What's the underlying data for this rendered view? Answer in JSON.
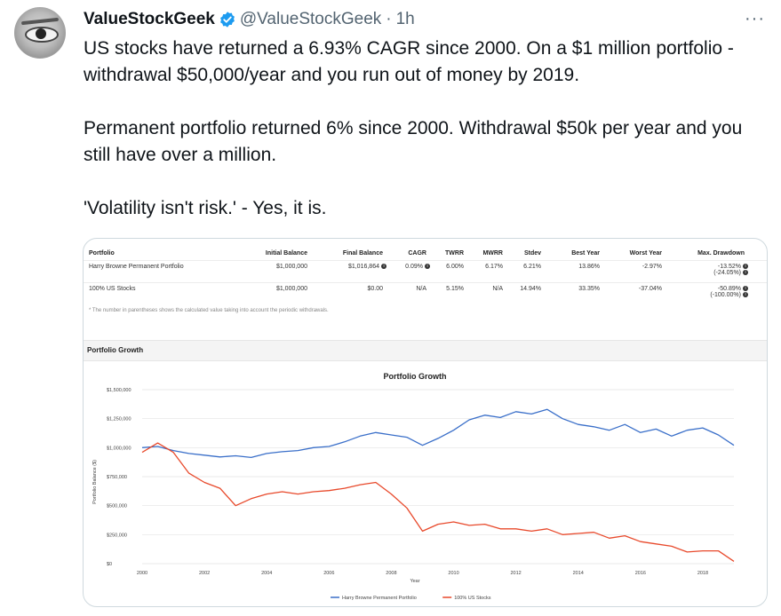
{
  "tweet": {
    "display_name": "ValueStockGeek",
    "handle": "@ValueStockGeek",
    "separator": "·",
    "time": "1h",
    "more": "···",
    "paragraphs": [
      "US stocks have returned a 6.93% CAGR since 2000. On a $1 million portfolio - withdrawal $50,000/year and you run out of money by 2019.",
      "Permanent portfolio returned 6% since 2000. Withdrawal $50k per year and you still have over a million.",
      "'Volatility isn't risk.' - Yes, it is."
    ],
    "verified_color": "#1d9bf0"
  },
  "table": {
    "headers": [
      "Portfolio",
      "Initial Balance",
      "Final Balance",
      "CAGR",
      "TWRR",
      "MWRR",
      "Stdev",
      "Best Year",
      "Worst Year",
      "Max. Drawdown"
    ],
    "rows": [
      [
        "Harry Browne Permanent Portfolio",
        "$1,000,000",
        "$1,016,864",
        "0.09%",
        "6.00%",
        "6.17%",
        "6.21%",
        "13.86%",
        "-2.97%",
        "-13.52%",
        "(-24.05%)"
      ],
      [
        "100% US Stocks",
        "$1,000,000",
        "$0.00",
        "N/A",
        "5.15%",
        "N/A",
        "14.94%",
        "33.35%",
        "-37.04%",
        "-50.89%",
        "(-100.00%)"
      ]
    ],
    "footnote": "* The number in parentheses shows the calculated value taking into account the periodic withdrawals."
  },
  "section_title": "Portfolio Growth",
  "chart_data": {
    "type": "line",
    "title": "Portfolio Growth",
    "xlabel": "Year",
    "ylabel": "Portfolio Balance ($)",
    "xlim": [
      2000,
      2019
    ],
    "ylim": [
      0,
      1500000
    ],
    "y_ticks": [
      0,
      250000,
      500000,
      750000,
      1000000,
      1250000,
      1500000
    ],
    "y_tick_labels": [
      "$0",
      "$250,000",
      "$500,000",
      "$750,000",
      "$1,000,000",
      "$1,250,000",
      "$1,500,000"
    ],
    "x_ticks": [
      2000,
      2002,
      2004,
      2006,
      2008,
      2010,
      2012,
      2014,
      2016,
      2018
    ],
    "x_tick_labels": [
      "2000",
      "2002",
      "2004",
      "2006",
      "2008",
      "2010",
      "2012",
      "2014",
      "2016",
      "2018"
    ],
    "grid": true,
    "legend": "bottom",
    "series": [
      {
        "name": "Harry Browne Permanent Portfolio",
        "color": "#3a6fc9",
        "x": [
          2000,
          2000.5,
          2001,
          2001.5,
          2002,
          2002.5,
          2003,
          2003.5,
          2004,
          2004.5,
          2005,
          2005.5,
          2006,
          2006.5,
          2007,
          2007.5,
          2008,
          2008.5,
          2009,
          2009.5,
          2010,
          2010.5,
          2011,
          2011.5,
          2012,
          2012.5,
          2013,
          2013.5,
          2014,
          2014.5,
          2015,
          2015.5,
          2016,
          2016.5,
          2017,
          2017.5,
          2018,
          2018.5,
          2019
        ],
        "y": [
          1000000,
          1010000,
          975000,
          950000,
          935000,
          920000,
          930000,
          915000,
          950000,
          965000,
          975000,
          1000000,
          1010000,
          1050000,
          1100000,
          1130000,
          1110000,
          1090000,
          1020000,
          1080000,
          1150000,
          1240000,
          1280000,
          1260000,
          1310000,
          1290000,
          1330000,
          1250000,
          1200000,
          1180000,
          1150000,
          1200000,
          1130000,
          1160000,
          1100000,
          1150000,
          1170000,
          1110000,
          1020000
        ]
      },
      {
        "name": "100% US Stocks",
        "color": "#e8492b",
        "x": [
          2000,
          2000.5,
          2001,
          2001.5,
          2002,
          2002.5,
          2003,
          2003.5,
          2004,
          2004.5,
          2005,
          2005.5,
          2006,
          2006.5,
          2007,
          2007.5,
          2008,
          2008.5,
          2009,
          2009.5,
          2010,
          2010.5,
          2011,
          2011.5,
          2012,
          2012.5,
          2013,
          2013.5,
          2014,
          2014.5,
          2015,
          2015.5,
          2016,
          2016.5,
          2017,
          2017.5,
          2018,
          2018.5,
          2019
        ],
        "y": [
          960000,
          1040000,
          960000,
          780000,
          700000,
          650000,
          500000,
          560000,
          600000,
          620000,
          600000,
          620000,
          630000,
          650000,
          680000,
          700000,
          600000,
          480000,
          280000,
          340000,
          360000,
          330000,
          340000,
          300000,
          300000,
          280000,
          300000,
          250000,
          260000,
          270000,
          220000,
          240000,
          190000,
          170000,
          150000,
          100000,
          110000,
          110000,
          20000
        ]
      }
    ]
  }
}
